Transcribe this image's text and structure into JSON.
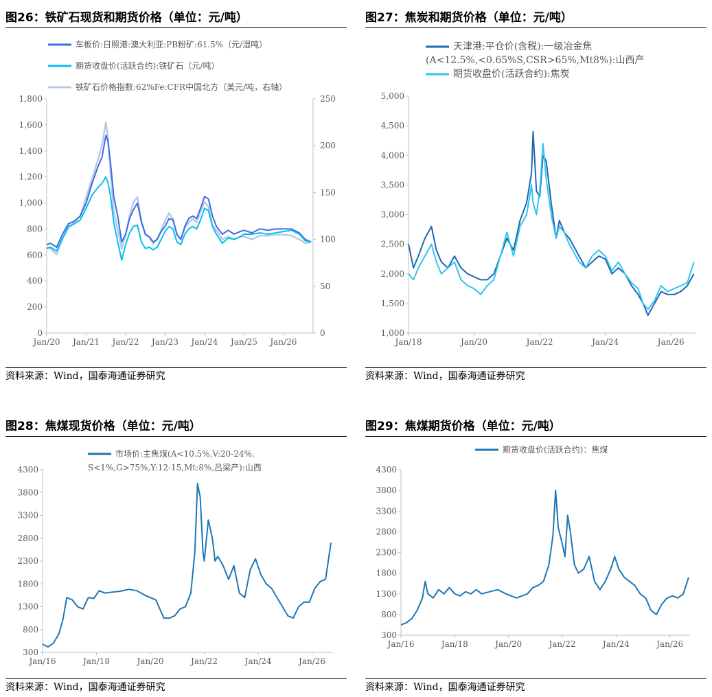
{
  "panels": [
    {
      "title": "图26：铁矿石现货和期货价格（单位：元/吨）",
      "source": "资料来源：Wind，国泰海通证券研究"
    },
    {
      "title": "图27：焦炭和期货价格（单位：元/吨）",
      "source": "资料来源：Wind，国泰海通证券研究"
    },
    {
      "title": "图28：焦煤现货价格（单位：元/吨）",
      "source": "资料来源：Wind，国泰海通证券研究"
    },
    {
      "title": "图29：焦煤期货价格（单位：元/吨）",
      "source": "资料来源：Wind，国泰海通证券研究"
    }
  ],
  "chart_data": [
    {
      "type": "line",
      "x_ticks": [
        "Jan/20",
        "Jan/21",
        "Jan/22",
        "Jan/23",
        "Jan/24",
        "Jan/25",
        "Jan/26"
      ],
      "x_range": [
        2020.0,
        2026.75
      ],
      "ylim": [
        0,
        1800
      ],
      "y_ticks": [
        "0",
        "200",
        "400",
        "600",
        "800",
        "1,000",
        "1,200",
        "1,400",
        "1,600",
        "1,800"
      ],
      "y2lim": [
        0,
        250
      ],
      "y2_ticks": [
        "0",
        "50",
        "100",
        "150",
        "200",
        "250"
      ],
      "grid": false,
      "legend_position": "top-left",
      "series": [
        {
          "name": "车板价:日照港:澳大利亚:PB粉矿:61.5%（元/湿吨）",
          "axis": "left",
          "color": "#4169E1",
          "x": [
            2020.0,
            2020.1,
            2020.25,
            2020.4,
            2020.55,
            2020.7,
            2020.85,
            2021.0,
            2021.15,
            2021.3,
            2021.4,
            2021.5,
            2021.55,
            2021.62,
            2021.7,
            2021.8,
            2021.9,
            2022.0,
            2022.1,
            2022.2,
            2022.3,
            2022.4,
            2022.5,
            2022.6,
            2022.7,
            2022.8,
            2022.9,
            2023.0,
            2023.1,
            2023.2,
            2023.3,
            2023.4,
            2023.5,
            2023.6,
            2023.7,
            2023.8,
            2023.9,
            2024.0,
            2024.1,
            2024.2,
            2024.3,
            2024.45,
            2024.6,
            2024.75,
            2024.9,
            2025.0,
            2025.2,
            2025.4,
            2025.6,
            2025.8,
            2026.0,
            2026.2,
            2026.4,
            2026.55,
            2026.7
          ],
          "y": [
            680,
            690,
            660,
            760,
            840,
            860,
            900,
            1000,
            1150,
            1280,
            1350,
            1520,
            1480,
            1300,
            1050,
            900,
            700,
            760,
            880,
            950,
            1000,
            850,
            760,
            740,
            700,
            720,
            780,
            820,
            880,
            870,
            760,
            720,
            820,
            880,
            900,
            880,
            960,
            1050,
            1030,
            900,
            820,
            760,
            790,
            760,
            780,
            790,
            770,
            800,
            790,
            800,
            800,
            800,
            770,
            720,
            700
          ]
        },
        {
          "name": "期货收盘价(活跃合约):铁矿石（元/吨）",
          "axis": "left",
          "color": "#00C0F0",
          "x": [
            2020.0,
            2020.1,
            2020.25,
            2020.4,
            2020.55,
            2020.7,
            2020.85,
            2021.0,
            2021.15,
            2021.3,
            2021.4,
            2021.5,
            2021.55,
            2021.62,
            2021.7,
            2021.8,
            2021.9,
            2022.0,
            2022.1,
            2022.2,
            2022.3,
            2022.4,
            2022.5,
            2022.6,
            2022.7,
            2022.8,
            2022.9,
            2023.0,
            2023.1,
            2023.2,
            2023.3,
            2023.4,
            2023.5,
            2023.6,
            2023.7,
            2023.8,
            2023.9,
            2024.0,
            2024.1,
            2024.2,
            2024.3,
            2024.45,
            2024.6,
            2024.75,
            2024.9,
            2025.0,
            2025.2,
            2025.4,
            2025.6,
            2025.8,
            2026.0,
            2026.2,
            2026.4,
            2026.55,
            2026.7
          ],
          "y": [
            650,
            660,
            630,
            730,
            820,
            840,
            870,
            960,
            1060,
            1120,
            1150,
            1200,
            1160,
            1050,
            850,
            700,
            560,
            680,
            770,
            820,
            830,
            700,
            650,
            660,
            640,
            660,
            720,
            780,
            820,
            800,
            700,
            680,
            760,
            800,
            820,
            800,
            870,
            960,
            940,
            820,
            760,
            690,
            730,
            720,
            740,
            760,
            760,
            770,
            760,
            770,
            780,
            790,
            760,
            710,
            700
          ]
        },
        {
          "name": "铁矿石价格指数:62%Fe:CFR中国北方（美元/吨，右轴）",
          "axis": "right",
          "color": "#B9C9E7",
          "x": [
            2020.0,
            2020.1,
            2020.25,
            2020.4,
            2020.55,
            2020.7,
            2020.85,
            2021.0,
            2021.15,
            2021.3,
            2021.4,
            2021.5,
            2021.55,
            2021.62,
            2021.7,
            2021.8,
            2021.9,
            2022.0,
            2022.1,
            2022.2,
            2022.3,
            2022.4,
            2022.5,
            2022.6,
            2022.7,
            2022.8,
            2022.9,
            2023.0,
            2023.1,
            2023.2,
            2023.3,
            2023.4,
            2023.5,
            2023.6,
            2023.7,
            2023.8,
            2023.9,
            2024.0,
            2024.1,
            2024.2,
            2024.3,
            2024.45,
            2024.6,
            2024.75,
            2024.9,
            2025.0,
            2025.2,
            2025.4,
            2025.6,
            2025.8,
            2026.0,
            2026.2,
            2026.4,
            2026.55,
            2026.7
          ],
          "y": [
            92,
            90,
            84,
            100,
            112,
            118,
            125,
            145,
            165,
            185,
            200,
            225,
            210,
            170,
            130,
            110,
            90,
            105,
            125,
            140,
            145,
            120,
            105,
            102,
            95,
            100,
            110,
            120,
            128,
            122,
            105,
            100,
            112,
            118,
            122,
            118,
            130,
            140,
            135,
            115,
            110,
            100,
            103,
            100,
            103,
            103,
            100,
            104,
            104,
            105,
            105,
            104,
            100,
            96,
            97
          ]
        }
      ]
    },
    {
      "type": "line",
      "x_ticks": [
        "Jan/18",
        "Jan/20",
        "Jan/22",
        "Jan/24",
        "Jan/26"
      ],
      "x_range": [
        2018.0,
        2026.75
      ],
      "ylim": [
        1000,
        5000
      ],
      "y_ticks": [
        "1,000",
        "1,500",
        "2,000",
        "2,500",
        "3,000",
        "3,500",
        "4,000",
        "4,500",
        "5,000"
      ],
      "grid": false,
      "legend_position": "top",
      "series": [
        {
          "name_lines": [
            "天津港:平仓价(含税):一级冶金焦",
            "(A<12.5%,<0.65%S,CSR>65%,Mt8%):山西产"
          ],
          "name": "天津港:平仓价(含税):一级冶金焦(A<12.5%,<0.65%S,CSR>65%,Mt8%):山西产",
          "color": "#1F66B0",
          "x": [
            2018.0,
            2018.15,
            2018.3,
            2018.5,
            2018.7,
            2018.85,
            2019.0,
            2019.2,
            2019.4,
            2019.6,
            2019.8,
            2020.0,
            2020.2,
            2020.4,
            2020.6,
            2020.8,
            2021.0,
            2021.2,
            2021.4,
            2021.6,
            2021.75,
            2021.8,
            2021.9,
            2022.0,
            2022.1,
            2022.2,
            2022.35,
            2022.5,
            2022.6,
            2022.75,
            2022.9,
            2023.0,
            2023.2,
            2023.4,
            2023.6,
            2023.8,
            2024.0,
            2024.2,
            2024.4,
            2024.6,
            2024.8,
            2025.0,
            2025.15,
            2025.3,
            2025.5,
            2025.7,
            2025.9,
            2026.1,
            2026.3,
            2026.5,
            2026.7
          ],
          "y": [
            2500,
            2100,
            2300,
            2600,
            2800,
            2400,
            2200,
            2100,
            2300,
            2100,
            2000,
            1950,
            1900,
            1900,
            2000,
            2300,
            2600,
            2400,
            2900,
            3200,
            3700,
            4400,
            3400,
            3300,
            4000,
            3900,
            3200,
            2600,
            2900,
            2700,
            2600,
            2500,
            2300,
            2100,
            2200,
            2300,
            2250,
            2000,
            2100,
            2000,
            1800,
            1650,
            1500,
            1300,
            1500,
            1700,
            1650,
            1650,
            1700,
            1800,
            2000
          ]
        },
        {
          "name": "期货收盘价(活跃合约):焦炭",
          "color": "#2FC5F0",
          "x": [
            2018.0,
            2018.15,
            2018.3,
            2018.5,
            2018.7,
            2018.85,
            2019.0,
            2019.2,
            2019.4,
            2019.6,
            2019.8,
            2020.0,
            2020.2,
            2020.4,
            2020.6,
            2020.8,
            2021.0,
            2021.2,
            2021.4,
            2021.6,
            2021.75,
            2021.8,
            2021.9,
            2022.0,
            2022.1,
            2022.2,
            2022.35,
            2022.5,
            2022.6,
            2022.75,
            2022.9,
            2023.0,
            2023.2,
            2023.4,
            2023.6,
            2023.8,
            2024.0,
            2024.2,
            2024.4,
            2024.6,
            2024.8,
            2025.0,
            2025.15,
            2025.3,
            2025.5,
            2025.7,
            2025.9,
            2026.1,
            2026.3,
            2026.5,
            2026.7
          ],
          "y": [
            2000,
            1900,
            2100,
            2300,
            2500,
            2200,
            2000,
            2100,
            2200,
            1900,
            1800,
            1750,
            1650,
            1800,
            1900,
            2300,
            2700,
            2300,
            2800,
            3000,
            3500,
            3200,
            3000,
            3400,
            4200,
            3600,
            3000,
            2600,
            2800,
            2700,
            2500,
            2400,
            2200,
            2100,
            2300,
            2400,
            2300,
            2050,
            2200,
            2000,
            1850,
            1750,
            1500,
            1400,
            1550,
            1800,
            1700,
            1750,
            1800,
            1850,
            2200
          ]
        }
      ]
    },
    {
      "type": "line",
      "x_ticks": [
        "Jan/16",
        "Jan/18",
        "Jan/20",
        "Jan/22",
        "Jan/24",
        "Jan/26"
      ],
      "x_range": [
        2016.0,
        2026.75
      ],
      "ylim": [
        300,
        4300
      ],
      "y_ticks": [
        "300",
        "800",
        "1300",
        "1800",
        "2300",
        "2800",
        "3300",
        "3800",
        "4300"
      ],
      "grid": false,
      "legend_position": "top",
      "series": [
        {
          "name_lines": [
            "市场价:主焦煤(A<10.5%,V:20-24%,",
            "S<1%,G>75%,Y:12-15,Mt:8%,吕梁产):山西"
          ],
          "name": "市场价:主焦煤(A<10.5%,V:20-24%,S<1%,G>75%,Y:12-15,Mt:8%,吕梁产):山西",
          "color": "#1F77B4",
          "x": [
            2016.0,
            2016.2,
            2016.4,
            2016.6,
            2016.75,
            2016.9,
            2017.1,
            2017.3,
            2017.5,
            2017.7,
            2017.9,
            2018.1,
            2018.3,
            2018.6,
            2018.9,
            2019.2,
            2019.5,
            2019.8,
            2020.0,
            2020.2,
            2020.35,
            2020.5,
            2020.7,
            2020.9,
            2021.1,
            2021.3,
            2021.5,
            2021.65,
            2021.75,
            2021.85,
            2021.95,
            2022.0,
            2022.15,
            2022.3,
            2022.4,
            2022.5,
            2022.7,
            2022.9,
            2023.1,
            2023.3,
            2023.5,
            2023.7,
            2023.9,
            2024.1,
            2024.3,
            2024.5,
            2024.7,
            2024.9,
            2025.1,
            2025.3,
            2025.5,
            2025.7,
            2025.9,
            2026.1,
            2026.3,
            2026.5,
            2026.7
          ],
          "y": [
            480,
            420,
            500,
            700,
            1000,
            1500,
            1450,
            1300,
            1250,
            1500,
            1480,
            1650,
            1600,
            1620,
            1640,
            1680,
            1650,
            1550,
            1500,
            1450,
            1250,
            1050,
            1050,
            1100,
            1250,
            1300,
            1600,
            2500,
            4000,
            3700,
            2500,
            2300,
            3200,
            2800,
            2300,
            2400,
            2200,
            1900,
            2200,
            1600,
            1500,
            2100,
            2350,
            2000,
            1800,
            1700,
            1500,
            1300,
            1100,
            1050,
            1300,
            1400,
            1400,
            1700,
            1850,
            1900,
            2700
          ]
        }
      ]
    },
    {
      "type": "line",
      "x_ticks": [
        "Jan/16",
        "Jan/18",
        "Jan/20",
        "Jan/22",
        "Jan/24",
        "Jan/26"
      ],
      "x_range": [
        2016.0,
        2026.75
      ],
      "ylim": [
        300,
        4300
      ],
      "y_ticks": [
        "300",
        "800",
        "1300",
        "1800",
        "2300",
        "2800",
        "3300",
        "3800",
        "4300"
      ],
      "grid": false,
      "legend_position": "top",
      "series": [
        {
          "name": "期货收盘价(活跃合约)：焦煤",
          "color": "#1F77B4",
          "x": [
            2016.0,
            2016.2,
            2016.4,
            2016.6,
            2016.8,
            2016.9,
            2017.0,
            2017.2,
            2017.4,
            2017.6,
            2017.8,
            2018.0,
            2018.2,
            2018.4,
            2018.6,
            2018.8,
            2019.0,
            2019.3,
            2019.6,
            2019.9,
            2020.1,
            2020.3,
            2020.5,
            2020.7,
            2020.9,
            2021.1,
            2021.3,
            2021.5,
            2021.65,
            2021.75,
            2021.85,
            2022.0,
            2022.1,
            2022.2,
            2022.3,
            2022.45,
            2022.6,
            2022.8,
            2023.0,
            2023.2,
            2023.4,
            2023.6,
            2023.8,
            2023.95,
            2024.1,
            2024.3,
            2024.5,
            2024.7,
            2024.9,
            2025.1,
            2025.3,
            2025.5,
            2025.7,
            2025.9,
            2026.1,
            2026.3,
            2026.5,
            2026.7
          ],
          "y": [
            550,
            600,
            700,
            900,
            1200,
            1600,
            1300,
            1200,
            1400,
            1300,
            1450,
            1300,
            1250,
            1350,
            1300,
            1400,
            1300,
            1350,
            1400,
            1300,
            1250,
            1200,
            1250,
            1300,
            1450,
            1500,
            1600,
            2000,
            2700,
            3800,
            2900,
            2500,
            2200,
            3200,
            2800,
            2000,
            1800,
            1900,
            2200,
            1600,
            1400,
            1600,
            1900,
            2200,
            1900,
            1700,
            1600,
            1500,
            1300,
            1200,
            900,
            800,
            1050,
            1200,
            1250,
            1200,
            1300,
            1700
          ]
        }
      ]
    }
  ]
}
